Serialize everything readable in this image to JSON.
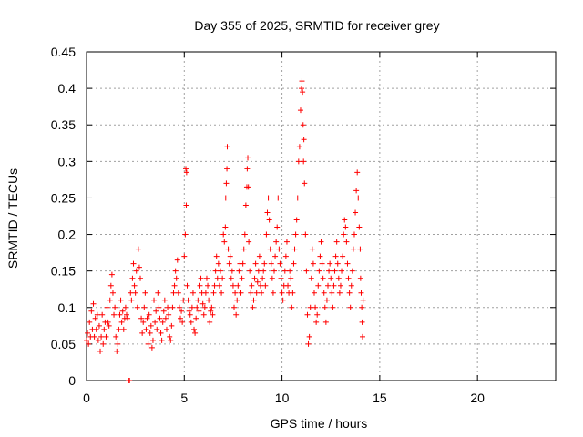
{
  "chart_data": {
    "type": "scatter",
    "title": "Day 355 of 2025, SRMTID for receiver grey",
    "xlabel": "GPS time / hours",
    "ylabel": "SRMTID / TECUs",
    "xlim": [
      0,
      24
    ],
    "ylim": [
      0,
      0.45
    ],
    "x_ticks": [
      0,
      5,
      10,
      15,
      20
    ],
    "x_tick_labels": [
      "0",
      "5",
      "10",
      "15",
      "20"
    ],
    "y_ticks": [
      0,
      0.05,
      0.1,
      0.15,
      0.2,
      0.25,
      0.3,
      0.35,
      0.4,
      0.45
    ],
    "y_tick_labels": [
      "0",
      "0.05",
      "0.1",
      "0.15",
      "0.2",
      "0.25",
      "0.3",
      "0.35",
      "0.4",
      "0.45"
    ],
    "grid": true,
    "marker": "+",
    "series": [
      {
        "name": "SRMTID",
        "color": "#ff0000",
        "points": [
          [
            0.0,
            0.055
          ],
          [
            0.05,
            0.065
          ],
          [
            0.1,
            0.05
          ],
          [
            0.15,
            0.08
          ],
          [
            0.2,
            0.06
          ],
          [
            0.25,
            0.095
          ],
          [
            0.3,
            0.07
          ],
          [
            0.35,
            0.105
          ],
          [
            0.4,
            0.06
          ],
          [
            0.45,
            0.085
          ],
          [
            0.5,
            0.07
          ],
          [
            0.55,
            0.09
          ],
          [
            0.6,
            0.055
          ],
          [
            0.65,
            0.075
          ],
          [
            0.7,
            0.04
          ],
          [
            0.75,
            0.06
          ],
          [
            0.8,
            0.09
          ],
          [
            0.85,
            0.05
          ],
          [
            0.9,
            0.07
          ],
          [
            0.95,
            0.08
          ],
          [
            1.0,
            0.06
          ],
          [
            1.05,
            0.1
          ],
          [
            1.1,
            0.08
          ],
          [
            1.15,
            0.075
          ],
          [
            1.2,
            0.11
          ],
          [
            1.25,
            0.13
          ],
          [
            1.3,
            0.145
          ],
          [
            1.35,
            0.12
          ],
          [
            1.4,
            0.09
          ],
          [
            1.45,
            0.1
          ],
          [
            1.5,
            0.06
          ],
          [
            1.55,
            0.04
          ],
          [
            1.6,
            0.05
          ],
          [
            1.65,
            0.07
          ],
          [
            1.7,
            0.09
          ],
          [
            1.75,
            0.11
          ],
          [
            1.8,
            0.08
          ],
          [
            1.85,
            0.095
          ],
          [
            1.9,
            0.07
          ],
          [
            1.95,
            0.085
          ],
          [
            2.0,
            0.1
          ],
          [
            2.05,
            0.09
          ],
          [
            2.1,
            0.085
          ],
          [
            2.15,
            0.0
          ],
          [
            2.2,
            0.0
          ],
          [
            2.25,
            0.12
          ],
          [
            2.3,
            0.11
          ],
          [
            2.35,
            0.14
          ],
          [
            2.4,
            0.16
          ],
          [
            2.45,
            0.13
          ],
          [
            2.5,
            0.12
          ],
          [
            2.55,
            0.15
          ],
          [
            2.6,
            0.1
          ],
          [
            2.65,
            0.18
          ],
          [
            2.7,
            0.155
          ],
          [
            2.75,
            0.14
          ],
          [
            2.8,
            0.085
          ],
          [
            2.85,
            0.065
          ],
          [
            2.9,
            0.08
          ],
          [
            2.95,
            0.1
          ],
          [
            3.0,
            0.12
          ],
          [
            3.05,
            0.07
          ],
          [
            3.1,
            0.085
          ],
          [
            3.15,
            0.05
          ],
          [
            3.2,
            0.09
          ],
          [
            3.25,
            0.065
          ],
          [
            3.3,
            0.075
          ],
          [
            3.35,
            0.045
          ],
          [
            3.4,
            0.055
          ],
          [
            3.45,
            0.11
          ],
          [
            3.5,
            0.08
          ],
          [
            3.55,
            0.095
          ],
          [
            3.6,
            0.07
          ],
          [
            3.65,
            0.12
          ],
          [
            3.7,
            0.1
          ],
          [
            3.75,
            0.085
          ],
          [
            3.8,
            0.065
          ],
          [
            3.85,
            0.055
          ],
          [
            3.9,
            0.08
          ],
          [
            3.95,
            0.095
          ],
          [
            4.0,
            0.11
          ],
          [
            4.05,
            0.085
          ],
          [
            4.1,
            0.07
          ],
          [
            4.15,
            0.1
          ],
          [
            4.2,
            0.09
          ],
          [
            4.25,
            0.06
          ],
          [
            4.3,
            0.055
          ],
          [
            4.35,
            0.075
          ],
          [
            4.4,
            0.1
          ],
          [
            4.45,
            0.12
          ],
          [
            4.5,
            0.13
          ],
          [
            4.55,
            0.15
          ],
          [
            4.6,
            0.14
          ],
          [
            4.65,
            0.165
          ],
          [
            4.7,
            0.12
          ],
          [
            4.75,
            0.1
          ],
          [
            4.8,
            0.085
          ],
          [
            4.85,
            0.095
          ],
          [
            4.9,
            0.08
          ],
          [
            4.95,
            0.11
          ],
          [
            5.0,
            0.17
          ],
          [
            5.05,
            0.2
          ],
          [
            5.08,
            0.29
          ],
          [
            5.12,
            0.285
          ],
          [
            5.1,
            0.24
          ],
          [
            5.15,
            0.13
          ],
          [
            5.2,
            0.11
          ],
          [
            5.25,
            0.095
          ],
          [
            5.3,
            0.09
          ],
          [
            5.35,
            0.08
          ],
          [
            5.4,
            0.1
          ],
          [
            5.45,
            0.12
          ],
          [
            5.5,
            0.07
          ],
          [
            5.55,
            0.065
          ],
          [
            5.6,
            0.085
          ],
          [
            5.65,
            0.1
          ],
          [
            5.7,
            0.11
          ],
          [
            5.75,
            0.095
          ],
          [
            5.8,
            0.13
          ],
          [
            5.85,
            0.14
          ],
          [
            5.9,
            0.12
          ],
          [
            5.95,
            0.105
          ],
          [
            6.0,
            0.09
          ],
          [
            6.05,
            0.1
          ],
          [
            6.1,
            0.12
          ],
          [
            6.15,
            0.14
          ],
          [
            6.2,
            0.13
          ],
          [
            6.25,
            0.11
          ],
          [
            6.3,
            0.08
          ],
          [
            6.35,
            0.095
          ],
          [
            6.4,
            0.1
          ],
          [
            6.45,
            0.09
          ],
          [
            6.5,
            0.12
          ],
          [
            6.55,
            0.13
          ],
          [
            6.6,
            0.15
          ],
          [
            6.65,
            0.17
          ],
          [
            6.7,
            0.14
          ],
          [
            6.75,
            0.16
          ],
          [
            6.8,
            0.13
          ],
          [
            6.85,
            0.15
          ],
          [
            6.9,
            0.12
          ],
          [
            6.95,
            0.14
          ],
          [
            7.0,
            0.2
          ],
          [
            7.05,
            0.19
          ],
          [
            7.1,
            0.21
          ],
          [
            7.12,
            0.25
          ],
          [
            7.15,
            0.27
          ],
          [
            7.18,
            0.29
          ],
          [
            7.2,
            0.32
          ],
          [
            7.25,
            0.18
          ],
          [
            7.3,
            0.16
          ],
          [
            7.35,
            0.17
          ],
          [
            7.4,
            0.14
          ],
          [
            7.45,
            0.15
          ],
          [
            7.5,
            0.13
          ],
          [
            7.55,
            0.1
          ],
          [
            7.6,
            0.12
          ],
          [
            7.65,
            0.09
          ],
          [
            7.7,
            0.11
          ],
          [
            7.75,
            0.13
          ],
          [
            7.8,
            0.15
          ],
          [
            7.85,
            0.16
          ],
          [
            7.9,
            0.12
          ],
          [
            7.95,
            0.14
          ],
          [
            8.0,
            0.16
          ],
          [
            8.05,
            0.18
          ],
          [
            8.1,
            0.2
          ],
          [
            8.15,
            0.24
          ],
          [
            8.2,
            0.265
          ],
          [
            8.22,
            0.29
          ],
          [
            8.25,
            0.305
          ],
          [
            8.28,
            0.265
          ],
          [
            8.3,
            0.19
          ],
          [
            8.35,
            0.15
          ],
          [
            8.4,
            0.12
          ],
          [
            8.45,
            0.13
          ],
          [
            8.5,
            0.1
          ],
          [
            8.55,
            0.11
          ],
          [
            8.6,
            0.14
          ],
          [
            8.65,
            0.16
          ],
          [
            8.7,
            0.12
          ],
          [
            8.75,
            0.135
          ],
          [
            8.8,
            0.15
          ],
          [
            8.85,
            0.17
          ],
          [
            8.9,
            0.13
          ],
          [
            8.95,
            0.12
          ],
          [
            9.0,
            0.14
          ],
          [
            9.05,
            0.15
          ],
          [
            9.1,
            0.16
          ],
          [
            9.15,
            0.13
          ],
          [
            9.2,
            0.2
          ],
          [
            9.25,
            0.23
          ],
          [
            9.3,
            0.25
          ],
          [
            9.35,
            0.22
          ],
          [
            9.4,
            0.18
          ],
          [
            9.45,
            0.16
          ],
          [
            9.5,
            0.14
          ],
          [
            9.55,
            0.12
          ],
          [
            9.6,
            0.15
          ],
          [
            9.65,
            0.17
          ],
          [
            9.7,
            0.19
          ],
          [
            9.75,
            0.21
          ],
          [
            9.8,
            0.25
          ],
          [
            9.85,
            0.18
          ],
          [
            9.9,
            0.16
          ],
          [
            9.95,
            0.14
          ],
          [
            10.0,
            0.12
          ],
          [
            10.05,
            0.11
          ],
          [
            10.1,
            0.13
          ],
          [
            10.15,
            0.15
          ],
          [
            10.2,
            0.17
          ],
          [
            10.25,
            0.19
          ],
          [
            10.3,
            0.13
          ],
          [
            10.35,
            0.12
          ],
          [
            10.4,
            0.15
          ],
          [
            10.45,
            0.14
          ],
          [
            10.5,
            0.1
          ],
          [
            10.55,
            0.12
          ],
          [
            10.6,
            0.16
          ],
          [
            10.65,
            0.18
          ],
          [
            10.7,
            0.2
          ],
          [
            10.75,
            0.22
          ],
          [
            10.8,
            0.25
          ],
          [
            10.85,
            0.3
          ],
          [
            10.9,
            0.32
          ],
          [
            10.95,
            0.37
          ],
          [
            11.0,
            0.4
          ],
          [
            11.02,
            0.41
          ],
          [
            11.05,
            0.395
          ],
          [
            11.08,
            0.35
          ],
          [
            11.1,
            0.3
          ],
          [
            11.12,
            0.33
          ],
          [
            11.15,
            0.27
          ],
          [
            11.2,
            0.2
          ],
          [
            11.25,
            0.15
          ],
          [
            11.3,
            0.09
          ],
          [
            11.35,
            0.05
          ],
          [
            11.4,
            0.06
          ],
          [
            11.45,
            0.1
          ],
          [
            11.5,
            0.14
          ],
          [
            11.55,
            0.18
          ],
          [
            11.6,
            0.16
          ],
          [
            11.65,
            0.12
          ],
          [
            11.7,
            0.1
          ],
          [
            11.75,
            0.08
          ],
          [
            11.8,
            0.09
          ],
          [
            11.85,
            0.13
          ],
          [
            11.9,
            0.15
          ],
          [
            11.95,
            0.17
          ],
          [
            12.0,
            0.19
          ],
          [
            12.05,
            0.16
          ],
          [
            12.1,
            0.14
          ],
          [
            12.15,
            0.12
          ],
          [
            12.2,
            0.1
          ],
          [
            12.25,
            0.08
          ],
          [
            12.3,
            0.11
          ],
          [
            12.35,
            0.13
          ],
          [
            12.4,
            0.15
          ],
          [
            12.45,
            0.16
          ],
          [
            12.5,
            0.14
          ],
          [
            12.55,
            0.12
          ],
          [
            12.6,
            0.1
          ],
          [
            12.65,
            0.13
          ],
          [
            12.7,
            0.15
          ],
          [
            12.75,
            0.17
          ],
          [
            12.8,
            0.19
          ],
          [
            12.85,
            0.16
          ],
          [
            12.9,
            0.14
          ],
          [
            12.95,
            0.12
          ],
          [
            13.0,
            0.13
          ],
          [
            13.05,
            0.15
          ],
          [
            13.1,
            0.17
          ],
          [
            13.15,
            0.2
          ],
          [
            13.2,
            0.22
          ],
          [
            13.25,
            0.21
          ],
          [
            13.3,
            0.19
          ],
          [
            13.35,
            0.16
          ],
          [
            13.4,
            0.14
          ],
          [
            13.45,
            0.12
          ],
          [
            13.5,
            0.1
          ],
          [
            13.55,
            0.13
          ],
          [
            13.6,
            0.15
          ],
          [
            13.65,
            0.18
          ],
          [
            13.7,
            0.2
          ],
          [
            13.75,
            0.23
          ],
          [
            13.8,
            0.26
          ],
          [
            13.85,
            0.285
          ],
          [
            13.9,
            0.25
          ],
          [
            13.95,
            0.21
          ],
          [
            14.0,
            0.18
          ],
          [
            14.02,
            0.14
          ],
          [
            14.05,
            0.12
          ],
          [
            14.08,
            0.1
          ],
          [
            14.1,
            0.08
          ],
          [
            14.12,
            0.06
          ],
          [
            14.15,
            0.11
          ]
        ]
      }
    ]
  }
}
